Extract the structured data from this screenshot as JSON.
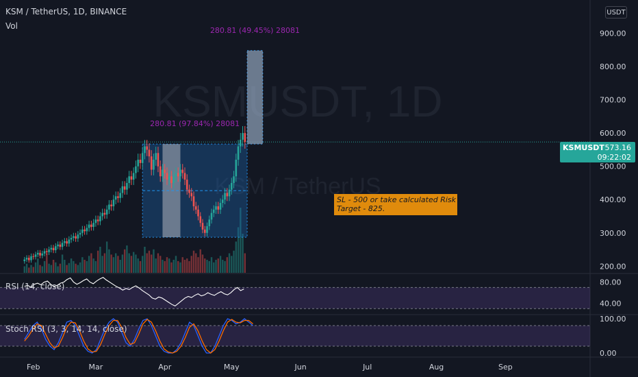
{
  "header": {
    "title": "KSM / TetherUS, 1D, BINANCE",
    "volume_label": "Vol",
    "currency_button": "USDT"
  },
  "watermark": {
    "main": "KSMUSDT, 1D",
    "sub": "KSM / TetherUS"
  },
  "price_tag": {
    "symbol": "KSMUSDT",
    "price": "573.16",
    "countdown": "09:22:02"
  },
  "note": {
    "line1": "SL - 500 or take calculated Risk",
    "line2": "Target - 825."
  },
  "colors": {
    "background": "#131722",
    "up": "#26a69a",
    "down": "#ef5350",
    "range_box": "#1e6bb8",
    "label_purple": "#9c27b0",
    "rsi_band": "#7e57c2",
    "note_bg": "#e08b0c",
    "k_line": "#2962ff",
    "d_line": "#ff6d00"
  },
  "chart_data": {
    "type": "candlestick",
    "title": "KSM / TetherUS, 1D, BINANCE",
    "price_axis": {
      "ticks": [
        "900.00",
        "800.00",
        "700.00",
        "600.00",
        "500.00",
        "400.00",
        "300.00",
        "200.00"
      ],
      "tick_values": [
        900,
        800,
        700,
        600,
        500,
        400,
        300,
        200
      ],
      "range": [
        180,
        1000
      ],
      "last_price": 573.16
    },
    "time_axis": {
      "ticks": [
        "Feb",
        "Mar",
        "Apr",
        "May",
        "Jun",
        "Jul",
        "Aug",
        "Sep"
      ],
      "tick_days": [
        0,
        28,
        59,
        89,
        120,
        150,
        181,
        212
      ],
      "range": [
        -15,
        250
      ]
    },
    "candles_close": [
      220,
      225,
      218,
      230,
      228,
      235,
      240,
      232,
      238,
      245,
      242,
      250,
      255,
      248,
      260,
      265,
      258,
      270,
      275,
      268,
      280,
      285,
      290,
      283,
      295,
      300,
      310,
      305,
      315,
      325,
      318,
      330,
      340,
      335,
      350,
      360,
      355,
      370,
      385,
      380,
      400,
      410,
      405,
      420,
      440,
      430,
      450,
      470,
      460,
      480,
      500,
      520,
      510,
      540,
      560,
      550,
      530,
      490,
      520,
      540,
      500,
      470,
      490,
      480,
      460,
      470,
      450,
      470,
      480,
      470,
      490,
      480,
      460,
      430,
      420,
      410,
      380,
      370,
      350,
      330,
      310,
      300,
      320,
      340,
      360,
      370,
      380,
      370,
      390,
      400,
      420,
      410,
      430,
      450,
      470,
      520,
      560,
      580,
      600,
      573
    ],
    "candles_start_day": -4,
    "ranges": [
      {
        "label": "280.81 (97.84%) 28081",
        "from_day": 49,
        "to_day": 96,
        "low": 287,
        "high": 567,
        "mid": 427,
        "highlight_from_day": 58,
        "highlight_to_day": 66
      },
      {
        "label": "280.81 (49.45%) 28081",
        "from_day": 96,
        "to_day": 103,
        "low": 567,
        "high": 848,
        "highlight_from_day": 96,
        "highlight_to_day": 103
      }
    ],
    "rsi": {
      "label": "RSI (14, close)",
      "ticks": [
        "80.00",
        "40.00"
      ],
      "tick_values": [
        80,
        40
      ],
      "range": [
        20,
        95
      ],
      "band": [
        30,
        70
      ],
      "values": [
        72,
        74,
        70,
        76,
        78,
        75,
        80,
        82,
        76,
        72,
        74,
        78,
        80,
        85,
        88,
        80,
        76,
        79,
        83,
        86,
        80,
        77,
        82,
        86,
        89,
        84,
        80,
        76,
        72,
        69,
        65,
        68,
        66,
        70,
        73,
        69,
        64,
        60,
        56,
        50,
        48,
        52,
        50,
        46,
        42,
        38,
        35,
        40,
        45,
        50,
        53,
        51,
        55,
        58,
        54,
        56,
        60,
        57,
        55,
        59,
        62,
        58,
        56,
        60,
        66,
        70,
        64,
        67
      ],
      "start_day": -4
    },
    "stoch_rsi": {
      "label": "Stoch RSI (3, 3, 14, 14, close)",
      "ticks": [
        "100.00",
        "0.00"
      ],
      "tick_values": [
        100,
        0
      ],
      "range": [
        -10,
        110
      ],
      "band": [
        20,
        80
      ],
      "k": [
        40,
        60,
        80,
        90,
        70,
        40,
        20,
        10,
        30,
        60,
        90,
        95,
        80,
        50,
        20,
        5,
        0,
        10,
        40,
        70,
        90,
        100,
        90,
        60,
        30,
        20,
        40,
        70,
        95,
        100,
        80,
        50,
        20,
        5,
        0,
        0,
        10,
        30,
        60,
        90,
        80,
        50,
        20,
        0,
        0,
        20,
        50,
        80,
        100,
        95,
        85,
        90,
        100,
        90,
        80
      ],
      "d": [
        35,
        50,
        70,
        85,
        80,
        55,
        30,
        15,
        20,
        45,
        75,
        90,
        88,
        65,
        35,
        12,
        3,
        5,
        25,
        55,
        80,
        95,
        95,
        75,
        45,
        25,
        30,
        55,
        85,
        98,
        90,
        65,
        35,
        12,
        3,
        0,
        5,
        20,
        45,
        75,
        85,
        65,
        35,
        10,
        0,
        10,
        35,
        65,
        90,
        98,
        90,
        88,
        95,
        95,
        85
      ],
      "start_day": -4,
      "step_days": 1.9
    },
    "volume": {
      "max": 100,
      "bars": [
        10,
        14,
        8,
        12,
        9,
        16,
        22,
        12,
        10,
        18,
        30,
        14,
        12,
        20,
        16,
        10,
        14,
        28,
        20,
        12,
        15,
        22,
        18,
        14,
        12,
        16,
        24,
        20,
        18,
        26,
        30,
        22,
        18,
        34,
        40,
        26,
        30,
        48,
        36,
        28,
        24,
        30,
        26,
        20,
        28,
        36,
        42,
        30,
        26,
        32,
        28,
        22,
        18,
        26,
        40,
        30,
        34,
        28,
        36,
        22,
        30,
        26,
        20,
        18,
        24,
        22,
        16,
        20,
        26,
        18,
        16,
        24,
        20,
        22,
        18,
        26,
        34,
        30,
        24,
        36,
        28,
        22,
        20,
        18,
        24,
        16,
        20,
        22,
        26,
        20,
        18,
        24,
        30,
        26,
        34,
        48,
        70,
        100,
        60,
        30
      ]
    }
  }
}
